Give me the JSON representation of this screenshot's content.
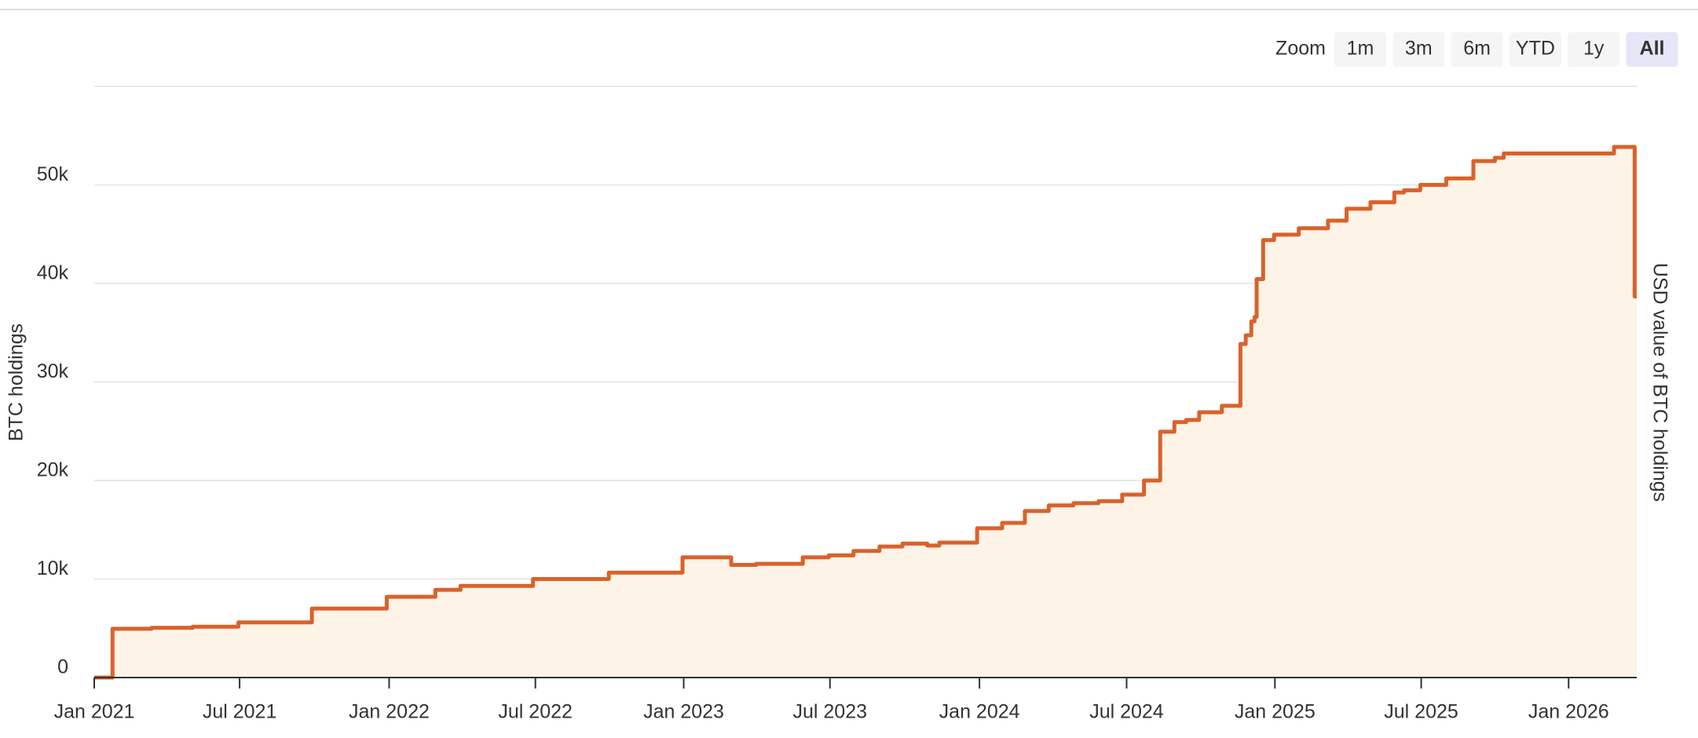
{
  "chart_data": {
    "type": "line",
    "step": "after",
    "zoom_label": "Zoom",
    "zoom_options": [
      "1m",
      "3m",
      "6m",
      "YTD",
      "1y",
      "All"
    ],
    "zoom_selected": "All",
    "y_label": "BTC holdings",
    "y2_label": "USD value of BTC holdings",
    "x": [
      2021.0,
      2021.062,
      2021.195,
      2021.334,
      2021.489,
      2021.738,
      2021.992,
      2022.157,
      2022.242,
      2022.488,
      2022.745,
      2022.995,
      2023.16,
      2023.245,
      2023.403,
      2023.491,
      2023.575,
      2023.663,
      2023.741,
      2023.825,
      2023.866,
      2023.994,
      2024.079,
      2024.156,
      2024.237,
      2024.321,
      2024.406,
      2024.486,
      2024.56,
      2024.615,
      2024.663,
      2024.703,
      2024.747,
      2024.824,
      2024.887,
      2024.905,
      2024.924,
      2024.935,
      2024.942,
      2024.964,
      2025.001,
      2025.085,
      2025.184,
      2025.247,
      2025.328,
      2025.409,
      2025.442,
      2025.497,
      2025.585,
      2025.677,
      2025.75,
      2025.78,
      2026.154,
      2026.224
    ],
    "series": [
      {
        "color": "#d9622b",
        "fill": "#fdf3e7",
        "values": [
          0,
          4950,
          5050,
          5160,
          5600,
          7000,
          8200,
          8900,
          9300,
          10000,
          10650,
          12200,
          11430,
          11540,
          12200,
          12400,
          12850,
          13300,
          13600,
          13400,
          13700,
          15150,
          15700,
          16900,
          17470,
          17700,
          17900,
          18570,
          20000,
          24950,
          25930,
          26150,
          26920,
          27580,
          33850,
          34730,
          36150,
          36600,
          40440,
          44400,
          44950,
          45600,
          46370,
          47580,
          48240,
          49230,
          49450,
          50000,
          50660,
          52420,
          52750,
          53190,
          53850,
          38680
        ]
      }
    ],
    "xlim": [
      2021.0,
      2026.231
    ],
    "xticks": [
      {
        "value": 2021.0,
        "label": "Jan 2021"
      },
      {
        "value": 2021.493,
        "label": "Jul 2021"
      },
      {
        "value": 2022.0,
        "label": "Jan 2022"
      },
      {
        "value": 2022.496,
        "label": "Jul 2022"
      },
      {
        "value": 2022.999,
        "label": "Jan 2023"
      },
      {
        "value": 2023.495,
        "label": "Jul 2023"
      },
      {
        "value": 2024.002,
        "label": "Jan 2024"
      },
      {
        "value": 2024.501,
        "label": "Jul 2024"
      },
      {
        "value": 2025.004,
        "label": "Jan 2025"
      },
      {
        "value": 2025.5,
        "label": "Jul 2025"
      },
      {
        "value": 2026.0,
        "label": "Jan 2026"
      }
    ],
    "ylim": [
      0,
      60000
    ],
    "yticks": [
      0,
      {
        "value": 10000,
        "label": "10k"
      },
      {
        "value": 20000,
        "label": "20k"
      },
      {
        "value": 30000,
        "label": "30k"
      },
      {
        "value": 40000,
        "label": "40k"
      },
      {
        "value": 50000,
        "label": "50k"
      }
    ],
    "grid": true
  }
}
